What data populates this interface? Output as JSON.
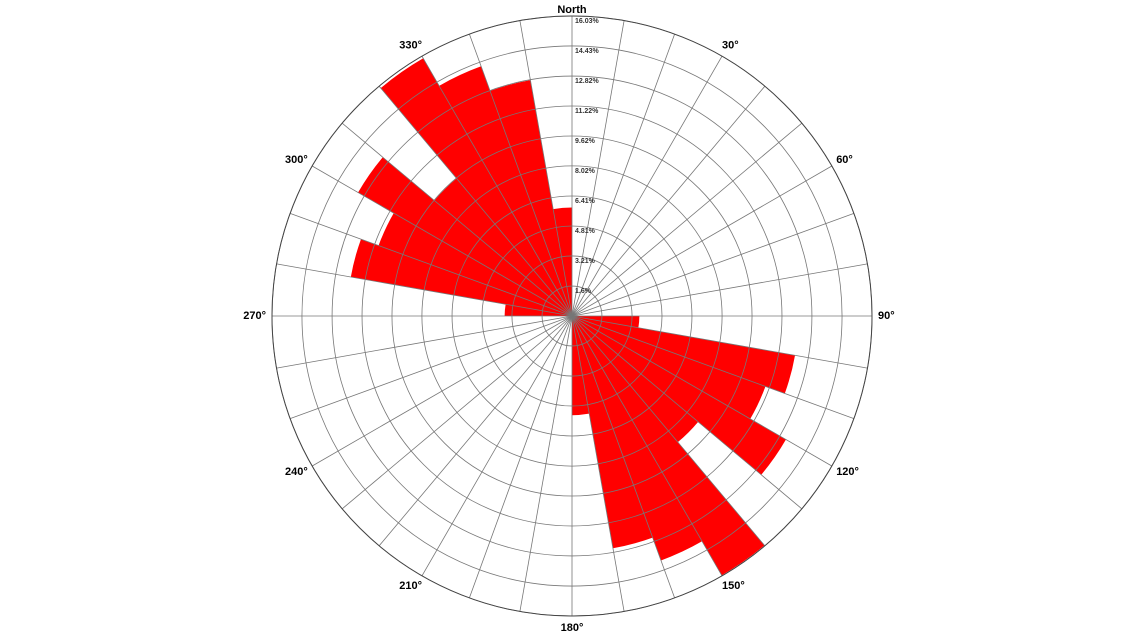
{
  "chart_data": {
    "type": "rose",
    "color": "#ff0000",
    "theta": [
      0,
      10,
      20,
      30,
      40,
      50,
      60,
      70,
      80,
      90,
      100,
      110,
      120,
      130,
      140,
      150,
      160,
      170,
      180,
      190,
      200,
      210,
      220,
      230,
      240,
      250,
      260,
      270,
      280,
      290,
      300,
      310,
      320,
      330,
      340,
      350,
      360
    ],
    "values": [
      0,
      0,
      0,
      0,
      0,
      0,
      0,
      0,
      0,
      3.6,
      12.1,
      11.0,
      13.2,
      8.8,
      16.0,
      13.9,
      12.6,
      5.3,
      0,
      0,
      0,
      0,
      0,
      0,
      0,
      0,
      0,
      3.6,
      12.0,
      11.0,
      13.2,
      9.6,
      15.9,
      14.2,
      12.8,
      5.8
    ],
    "rlim": [
      0,
      16.03
    ],
    "rticks": [
      {
        "value": 1.6,
        "label": "1.6%"
      },
      {
        "value": 3.21,
        "label": "3.21%"
      },
      {
        "value": 4.81,
        "label": "4.81%"
      },
      {
        "value": 6.41,
        "label": "6.41%"
      },
      {
        "value": 8.02,
        "label": "8.02%"
      },
      {
        "value": 9.62,
        "label": "9.62%"
      },
      {
        "value": 11.22,
        "label": "11.22%"
      },
      {
        "value": 12.82,
        "label": "12.82%"
      },
      {
        "value": 14.43,
        "label": "14.43%"
      },
      {
        "value": 16.03,
        "label": "16.03%"
      }
    ],
    "angle_labels": [
      {
        "value": 0,
        "label": "North"
      },
      {
        "value": 30,
        "label": "30°"
      },
      {
        "value": 60,
        "label": "60°"
      },
      {
        "value": 90,
        "label": "90°"
      },
      {
        "value": 120,
        "label": "120°"
      },
      {
        "value": 150,
        "label": "150°"
      },
      {
        "value": 180,
        "label": "180°"
      },
      {
        "value": 210,
        "label": "210°"
      },
      {
        "value": 240,
        "label": "240°"
      },
      {
        "value": 270,
        "label": "270°"
      },
      {
        "value": 300,
        "label": "300°"
      },
      {
        "value": 330,
        "label": "330°"
      }
    ],
    "grid": true
  }
}
